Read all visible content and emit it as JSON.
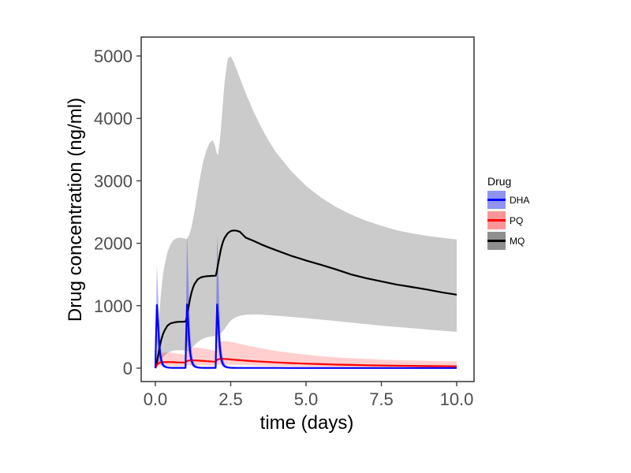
{
  "figure": {
    "background": "#ffffff"
  },
  "chart_data": {
    "type": "line",
    "title": "",
    "xlabel": "time (days)",
    "ylabel": "Drug concentration (ng/ml)",
    "grid": "off",
    "xlim": [
      -0.471,
      10.576
    ],
    "ylim": [
      -215,
      5303
    ],
    "x_ticks": {
      "values": [
        0,
        2.5,
        5,
        7.5,
        10
      ],
      "labels": [
        "0.0",
        "2.5",
        "5.0",
        "7.5",
        "10.0"
      ]
    },
    "y_ticks": {
      "values": [
        0,
        1000,
        2000,
        3000,
        4000,
        5000
      ],
      "labels": [
        "0",
        "1000",
        "2000",
        "3000",
        "4000",
        "5000"
      ]
    },
    "legend": {
      "title": "Drug",
      "position": "right"
    },
    "styles": {
      "panel_border": "#333333",
      "tick_color": "#333333",
      "tick_label_color": "#4d4d4d",
      "axis_title_color": "#000000",
      "line_width": 2.2
    },
    "x": [
      0,
      0.02,
      0.05,
      0.08,
      0.12,
      0.16,
      0.2,
      0.25,
      0.3,
      0.4,
      0.5,
      0.6,
      0.7,
      0.8,
      0.9,
      0.98,
      1,
      1.02,
      1.05,
      1.08,
      1.12,
      1.16,
      1.2,
      1.25,
      1.3,
      1.4,
      1.5,
      1.6,
      1.7,
      1.8,
      1.9,
      1.98,
      2,
      2.02,
      2.05,
      2.08,
      2.12,
      2.16,
      2.2,
      2.25,
      2.3,
      2.4,
      2.5,
      2.6,
      2.7,
      2.8,
      3,
      3.25,
      3.5,
      3.75,
      4,
      4.5,
      5,
      5.5,
      6,
      6.5,
      7,
      7.5,
      8,
      8.5,
      9,
      9.5,
      10
    ],
    "series": [
      {
        "name": "DHA",
        "line_color": "#0000ff",
        "ribbon_color": "rgba(0,0,255,0.30)",
        "legend_fill": "#9093f2",
        "mean": [
          0,
          500,
          1010,
          800,
          450,
          230,
          120,
          55,
          25,
          10,
          6,
          5,
          5,
          5,
          5,
          5,
          5,
          510,
          1020,
          810,
          455,
          232,
          121,
          56,
          25,
          10,
          6,
          5,
          5,
          5,
          5,
          5,
          5,
          510,
          1020,
          810,
          455,
          232,
          121,
          56,
          25,
          10,
          6,
          5,
          4,
          4,
          3,
          3,
          3,
          3,
          3,
          2,
          2,
          2,
          2,
          2,
          2,
          2,
          2,
          2,
          2,
          2,
          2
        ],
        "lower": [
          0,
          210,
          430,
          330,
          185,
          95,
          48,
          22,
          9,
          3,
          1,
          1,
          1,
          1,
          1,
          1,
          1,
          215,
          435,
          335,
          188,
          97,
          49,
          22,
          9,
          3,
          1,
          1,
          1,
          1,
          1,
          1,
          1,
          215,
          435,
          335,
          188,
          97,
          49,
          22,
          9,
          3,
          1,
          1,
          1,
          1,
          0,
          0,
          0,
          0,
          0,
          0,
          0,
          0,
          0,
          0,
          0,
          0,
          0,
          0,
          0,
          0,
          0
        ],
        "upper": [
          0,
          800,
          1650,
          1320,
          780,
          420,
          230,
          110,
          55,
          25,
          12,
          8,
          7,
          6,
          6,
          6,
          6,
          1050,
          2150,
          1700,
          1010,
          540,
          300,
          145,
          70,
          32,
          16,
          10,
          8,
          8,
          8,
          8,
          8,
          1050,
          2150,
          1700,
          1010,
          540,
          300,
          145,
          70,
          32,
          16,
          10,
          9,
          8,
          7,
          7,
          6,
          6,
          6,
          5,
          5,
          5,
          5,
          5,
          5,
          5,
          5,
          5,
          5,
          5,
          5
        ]
      },
      {
        "name": "PQ",
        "line_color": "#ff0000",
        "ribbon_color": "rgba(255,0,0,0.19)",
        "legend_fill": "#fb9598",
        "mean": [
          0,
          25,
          55,
          70,
          82,
          88,
          92,
          95,
          97,
          98,
          97,
          95,
          93,
          91,
          89,
          88,
          88,
          100,
          112,
          118,
          122,
          124,
          125,
          125,
          124,
          121,
          118,
          114,
          111,
          108,
          105,
          103,
          103,
          118,
          132,
          140,
          145,
          147,
          148,
          148,
          147,
          143,
          139,
          135,
          131,
          127,
          120,
          112,
          105,
          98,
          92,
          81,
          72,
          64,
          57,
          52,
          47,
          43,
          39,
          36,
          33,
          31,
          29
        ],
        "lower": [
          0,
          8,
          18,
          25,
          30,
          33,
          35,
          37,
          38,
          38,
          37,
          36,
          35,
          34,
          33,
          32,
          32,
          37,
          42,
          45,
          47,
          48,
          49,
          49,
          48,
          47,
          46,
          44,
          43,
          42,
          41,
          40,
          40,
          46,
          52,
          55,
          57,
          58,
          59,
          59,
          58,
          56,
          54,
          52,
          51,
          49,
          46,
          42,
          39,
          36,
          33,
          29,
          25,
          22,
          20,
          18,
          16,
          15,
          14,
          13,
          12,
          11,
          11
        ],
        "upper": [
          0,
          60,
          130,
          170,
          200,
          220,
          235,
          245,
          250,
          252,
          248,
          242,
          235,
          228,
          220,
          214,
          214,
          245,
          275,
          295,
          310,
          320,
          326,
          330,
          331,
          328,
          322,
          314,
          306,
          297,
          288,
          281,
          281,
          320,
          360,
          385,
          405,
          418,
          426,
          431,
          433,
          430,
          422,
          412,
          401,
          390,
          368,
          342,
          318,
          296,
          276,
          243,
          215,
          192,
          174,
          159,
          147,
          137,
          129,
          122,
          116,
          111,
          107
        ]
      },
      {
        "name": "MQ",
        "line_color": "#000000",
        "ribbon_color": "#cbcbcb",
        "legend_fill": "#8f8f8f",
        "mean": [
          0,
          30,
          90,
          170,
          280,
          380,
          460,
          540,
          600,
          680,
          715,
          730,
          738,
          742,
          744,
          745,
          745,
          775,
          840,
          920,
          1030,
          1130,
          1210,
          1290,
          1350,
          1420,
          1452,
          1465,
          1472,
          1476,
          1478,
          1480,
          1480,
          1510,
          1580,
          1660,
          1770,
          1870,
          1950,
          2030,
          2090,
          2160,
          2195,
          2205,
          2200,
          2185,
          2090,
          2040,
          1985,
          1935,
          1890,
          1800,
          1725,
          1655,
          1580,
          1500,
          1440,
          1390,
          1340,
          1300,
          1260,
          1215,
          1177
        ],
        "lower": [
          0,
          5,
          15,
          30,
          60,
          95,
          130,
          170,
          200,
          245,
          268,
          280,
          286,
          288,
          285,
          280,
          278,
          275,
          272,
          275,
          285,
          300,
          318,
          342,
          368,
          415,
          450,
          475,
          492,
          503,
          510,
          512,
          513,
          516,
          520,
          528,
          540,
          556,
          575,
          600,
          628,
          700,
          760,
          795,
          820,
          838,
          855,
          860,
          858,
          850,
          840,
          820,
          800,
          778,
          755,
          730,
          705,
          680,
          660,
          640,
          620,
          600,
          580
        ],
        "upper": [
          0,
          100,
          280,
          500,
          780,
          1040,
          1260,
          1480,
          1640,
          1860,
          1980,
          2050,
          2080,
          2090,
          2085,
          2075,
          2070,
          2065,
          2070,
          2090,
          2130,
          2190,
          2260,
          2380,
          2520,
          2820,
          3100,
          3330,
          3500,
          3610,
          3650,
          3560,
          3520,
          3470,
          3430,
          3410,
          3560,
          3750,
          3980,
          4300,
          4600,
          4950,
          5000,
          4900,
          4780,
          4650,
          4400,
          4120,
          3870,
          3650,
          3460,
          3160,
          2920,
          2730,
          2580,
          2460,
          2360,
          2280,
          2210,
          2160,
          2120,
          2090,
          2060
        ]
      }
    ],
    "draw_order": [
      "MQ",
      "PQ",
      "DHA"
    ]
  }
}
